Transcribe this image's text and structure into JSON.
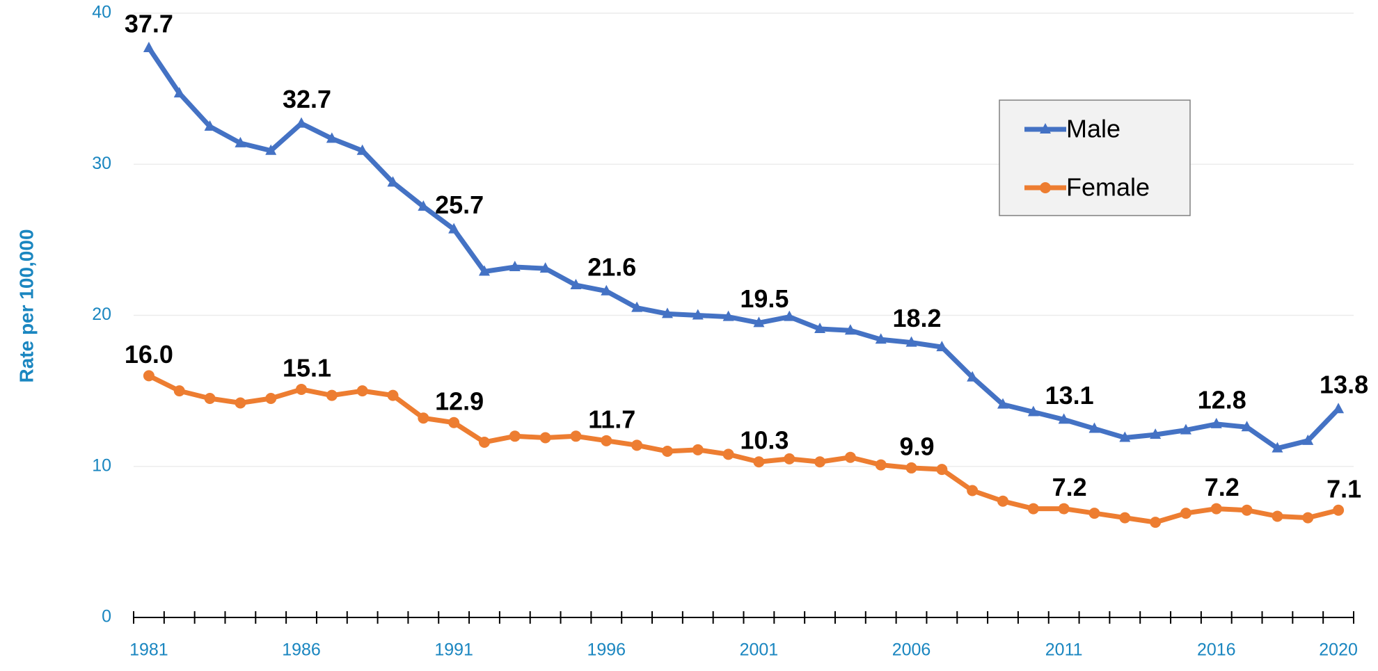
{
  "chart_data": {
    "type": "line",
    "y_label": "Rate per 100,000",
    "categories": [
      1981,
      null,
      null,
      null,
      null,
      1986,
      null,
      null,
      null,
      null,
      1991,
      null,
      null,
      null,
      null,
      1996,
      null,
      null,
      null,
      null,
      2001,
      null,
      null,
      null,
      null,
      2006,
      null,
      null,
      null,
      null,
      2011,
      null,
      null,
      null,
      null,
      2016,
      null,
      null,
      null,
      2020
    ],
    "ylim": [
      0,
      40
    ],
    "yticks": [
      0,
      10,
      20,
      30,
      40
    ],
    "grid": true,
    "legend": "upper-right",
    "series": [
      {
        "name": "Male",
        "color": "#4472c4",
        "marker": "triangle",
        "values": [
          37.7,
          34.7,
          32.5,
          31.4,
          30.9,
          32.7,
          31.7,
          30.9,
          28.8,
          27.2,
          25.7,
          22.9,
          23.2,
          23.1,
          22.0,
          21.6,
          20.5,
          20.1,
          20.0,
          19.9,
          19.5,
          19.9,
          19.1,
          19.0,
          18.4,
          18.2,
          17.9,
          15.9,
          14.1,
          13.6,
          13.1,
          12.5,
          11.9,
          12.1,
          12.4,
          12.8,
          12.6,
          11.2,
          11.7,
          13.8
        ],
        "value_labels": [
          "37.7",
          null,
          null,
          null,
          null,
          "32.7",
          null,
          null,
          null,
          null,
          "25.7",
          null,
          null,
          null,
          null,
          "21.6",
          null,
          null,
          null,
          null,
          "19.5",
          null,
          null,
          null,
          null,
          "18.2",
          null,
          null,
          null,
          null,
          "13.1",
          null,
          null,
          null,
          null,
          "12.8",
          null,
          null,
          null,
          "13.8"
        ]
      },
      {
        "name": "Female",
        "color": "#ed7d31",
        "marker": "circle",
        "values": [
          16.0,
          15.0,
          14.5,
          14.2,
          14.5,
          15.1,
          14.7,
          15.0,
          14.7,
          13.2,
          12.9,
          11.6,
          12.0,
          11.9,
          12.0,
          11.7,
          11.4,
          11.0,
          11.1,
          10.8,
          10.3,
          10.5,
          10.3,
          10.6,
          10.1,
          9.9,
          9.8,
          8.4,
          7.7,
          7.2,
          7.2,
          6.9,
          6.6,
          6.3,
          6.9,
          7.2,
          7.1,
          6.7,
          6.6,
          7.1
        ],
        "value_labels": [
          "16.0",
          null,
          null,
          null,
          null,
          "15.1",
          null,
          null,
          null,
          null,
          "12.9",
          null,
          null,
          null,
          null,
          "11.7",
          null,
          null,
          null,
          null,
          "10.3",
          null,
          null,
          null,
          null,
          "9.9",
          null,
          null,
          null,
          null,
          "7.2",
          null,
          null,
          null,
          null,
          "7.2",
          null,
          null,
          null,
          "7.1"
        ]
      }
    ]
  }
}
